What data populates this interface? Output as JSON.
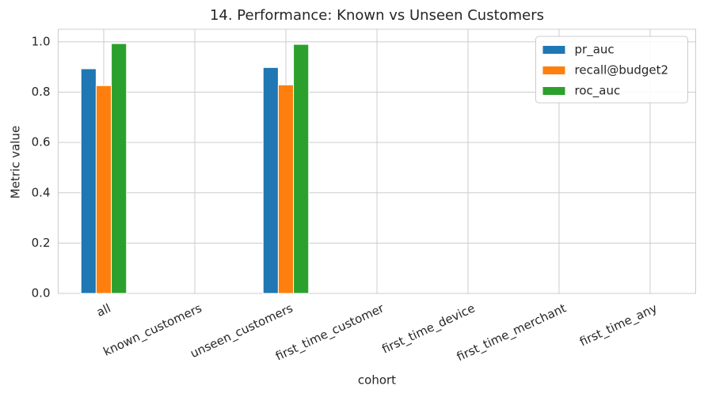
{
  "chart_data": {
    "type": "bar",
    "title": "14. Performance: Known vs Unseen Customers",
    "x_label": "cohort",
    "y_label": "Metric value",
    "categories": [
      "all",
      "known_customers",
      "unseen_customers",
      "first_time_customer",
      "first_time_device",
      "first_time_merchant",
      "first_time_any"
    ],
    "series": [
      {
        "name": "pr_auc",
        "color": "#1f77b4",
        "values": [
          0.893,
          null,
          0.898,
          null,
          null,
          null,
          null
        ]
      },
      {
        "name": "recall@budget2",
        "color": "#ff7f0e",
        "values": [
          0.826,
          null,
          0.829,
          null,
          null,
          null,
          null
        ]
      },
      {
        "name": "roc_auc",
        "color": "#2ca02c",
        "values": [
          0.993,
          null,
          0.99,
          null,
          null,
          null,
          null
        ]
      }
    ],
    "ylim": [
      0,
      1.05
    ],
    "yticks": [
      {
        "value": 0,
        "label": "0.0"
      },
      {
        "value": 0.2,
        "label": "0.2"
      },
      {
        "value": 0.4,
        "label": "0.4"
      },
      {
        "value": 0.6,
        "label": "0.6"
      },
      {
        "value": 0.8,
        "label": "0.8"
      },
      {
        "value": 1,
        "label": "1.0"
      }
    ],
    "grid": true,
    "legend": "upper-right"
  }
}
